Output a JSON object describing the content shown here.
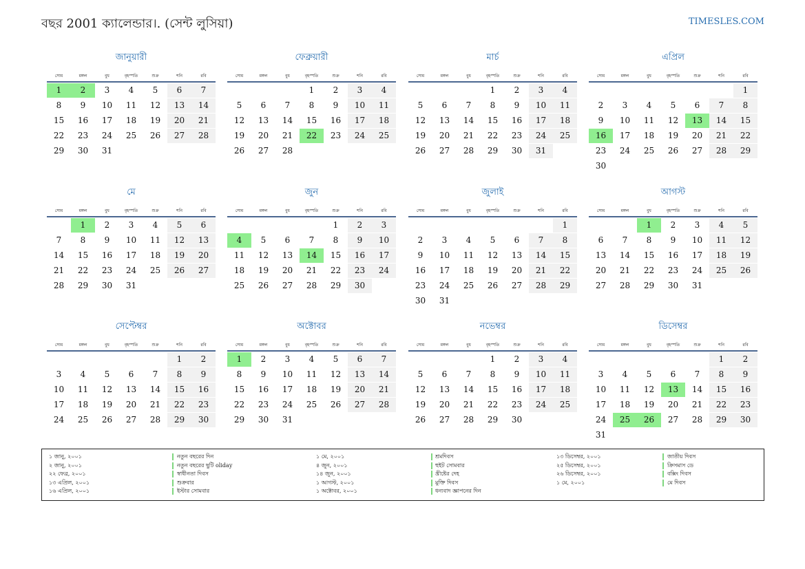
{
  "header": {
    "title": "বছর 2001 ক্যালেন্ডার।. (সেন্ট লুসিয়া)",
    "site": "TIMESLES.COM"
  },
  "weekdays": [
    "সোম",
    "মঙ্গল",
    "বুধ",
    "বৃহস্পতি",
    "শুক্র",
    "শনি",
    "রবি"
  ],
  "months": [
    {
      "name": "জানুয়ারী",
      "cells": [
        1,
        2,
        3,
        4,
        5,
        6,
        7,
        8,
        9,
        10,
        11,
        12,
        13,
        14,
        15,
        16,
        17,
        18,
        19,
        20,
        21,
        22,
        23,
        24,
        25,
        26,
        27,
        28,
        29,
        30,
        31
      ],
      "highlights": [
        1,
        2
      ]
    },
    {
      "name": "ফেব্রুয়ারী",
      "cells": [
        null,
        null,
        null,
        1,
        2,
        3,
        4,
        5,
        6,
        7,
        8,
        9,
        10,
        11,
        12,
        13,
        14,
        15,
        16,
        17,
        18,
        19,
        20,
        21,
        22,
        23,
        24,
        25,
        26,
        27,
        28
      ],
      "highlights": [
        22
      ]
    },
    {
      "name": "মার্চ",
      "cells": [
        null,
        null,
        null,
        1,
        2,
        3,
        4,
        5,
        6,
        7,
        8,
        9,
        10,
        11,
        12,
        13,
        14,
        15,
        16,
        17,
        18,
        19,
        20,
        21,
        22,
        23,
        24,
        25,
        26,
        27,
        28,
        29,
        30,
        31
      ],
      "highlights": []
    },
    {
      "name": "এপ্রিল",
      "cells": [
        null,
        null,
        null,
        null,
        null,
        null,
        1,
        2,
        3,
        4,
        5,
        6,
        7,
        8,
        9,
        10,
        11,
        12,
        13,
        14,
        15,
        16,
        17,
        18,
        19,
        20,
        21,
        22,
        23,
        24,
        25,
        26,
        27,
        28,
        29,
        30
      ],
      "highlights": [
        13,
        16
      ]
    },
    {
      "name": "মে",
      "cells": [
        null,
        1,
        2,
        3,
        4,
        5,
        6,
        7,
        8,
        9,
        10,
        11,
        12,
        13,
        14,
        15,
        16,
        17,
        18,
        19,
        20,
        21,
        22,
        23,
        24,
        25,
        26,
        27,
        28,
        29,
        30,
        31
      ],
      "highlights": [
        1
      ]
    },
    {
      "name": "জুন",
      "cells": [
        null,
        null,
        null,
        null,
        1,
        2,
        3,
        4,
        5,
        6,
        7,
        8,
        9,
        10,
        11,
        12,
        13,
        14,
        15,
        16,
        17,
        18,
        19,
        20,
        21,
        22,
        23,
        24,
        25,
        26,
        27,
        28,
        29,
        30
      ],
      "highlights": [
        4,
        14
      ]
    },
    {
      "name": "জুলাই",
      "cells": [
        null,
        null,
        null,
        null,
        null,
        null,
        1,
        2,
        3,
        4,
        5,
        6,
        7,
        8,
        9,
        10,
        11,
        12,
        13,
        14,
        15,
        16,
        17,
        18,
        19,
        20,
        21,
        22,
        23,
        24,
        25,
        26,
        27,
        28,
        29,
        30,
        31
      ],
      "highlights": []
    },
    {
      "name": "আগস্ট",
      "cells": [
        null,
        null,
        1,
        2,
        3,
        4,
        5,
        6,
        7,
        8,
        9,
        10,
        11,
        12,
        13,
        14,
        15,
        16,
        17,
        18,
        19,
        20,
        21,
        22,
        23,
        24,
        25,
        26,
        27,
        28,
        29,
        30,
        31
      ],
      "highlights": [
        1
      ]
    },
    {
      "name": "সেপ্টেম্বর",
      "cells": [
        null,
        null,
        null,
        null,
        null,
        1,
        2,
        3,
        4,
        5,
        6,
        7,
        8,
        9,
        10,
        11,
        12,
        13,
        14,
        15,
        16,
        17,
        18,
        19,
        20,
        21,
        22,
        23,
        24,
        25,
        26,
        27,
        28,
        29,
        30
      ],
      "highlights": []
    },
    {
      "name": "অক্টোবর",
      "cells": [
        1,
        2,
        3,
        4,
        5,
        6,
        7,
        8,
        9,
        10,
        11,
        12,
        13,
        14,
        15,
        16,
        17,
        18,
        19,
        20,
        21,
        22,
        23,
        24,
        25,
        26,
        27,
        28,
        29,
        30,
        31
      ],
      "highlights": [
        1
      ]
    },
    {
      "name": "নভেম্বর",
      "cells": [
        null,
        null,
        null,
        1,
        2,
        3,
        4,
        5,
        6,
        7,
        8,
        9,
        10,
        11,
        12,
        13,
        14,
        15,
        16,
        17,
        18,
        19,
        20,
        21,
        22,
        23,
        24,
        25,
        26,
        27,
        28,
        29,
        30
      ],
      "highlights": []
    },
    {
      "name": "ডিসেম্বর",
      "cells": [
        null,
        null,
        null,
        null,
        null,
        1,
        2,
        3,
        4,
        5,
        6,
        7,
        8,
        9,
        10,
        11,
        12,
        13,
        14,
        15,
        16,
        17,
        18,
        19,
        20,
        21,
        22,
        23,
        24,
        25,
        26,
        27,
        28,
        29,
        30,
        31
      ],
      "highlights": [
        13,
        25,
        26
      ]
    }
  ],
  "holidays": [
    [
      {
        "date": "১ জানু, ২০০১",
        "name": "নতুন বছরের দিন"
      },
      {
        "date": "২ জানু, ২০০১",
        "name": "নতুন বছরের ছুটি oliday"
      },
      {
        "date": "২২ ফেব্র, ২০০১",
        "name": "স্বাধীনতা দিবস"
      },
      {
        "date": "১৩ এপ্রিল, ২০০১",
        "name": "শুক্রবার"
      },
      {
        "date": "১৬ এপ্রিল, ২০০১",
        "name": "ইস্টার সোমবার"
      }
    ],
    [
      {
        "date": "১ মে, ২০০১",
        "name": "শ্রমদিবস"
      },
      {
        "date": "৪ জুন, ২০০১",
        "name": "হুইট সোমবার"
      },
      {
        "date": "১৪ জুন, ২০০১",
        "name": "খ্রীষ্টের দেহ"
      },
      {
        "date": "১ আগস্ট, ২০০১",
        "name": "মুক্তি দিবস"
      },
      {
        "date": "১ অক্টোবর, ২০০১",
        "name": "ধন্যবাদ জ্ঞাপনের দিন"
      }
    ],
    [
      {
        "date": "১৩ ডিসেম্বর, ২০০১",
        "name": "জাতীয় দিবস"
      },
      {
        "date": "২৫ ডিসেম্বর, ২০০১",
        "name": "ক্রিসমাস ডে"
      },
      {
        "date": "২৬ ডিসেম্বর, ২০০১",
        "name": "বক্সিং দিবস"
      },
      {
        "date": "১ মে, ২০০১",
        "name": "মে দিবস"
      }
    ]
  ]
}
